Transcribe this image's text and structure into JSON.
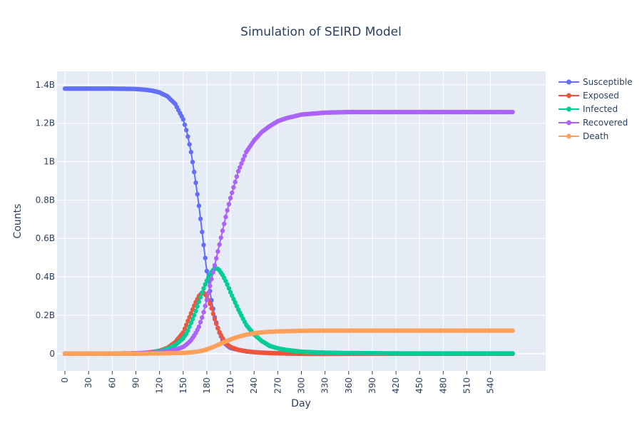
{
  "chart_data": {
    "type": "line",
    "title": "Simulation of SEIRD Model",
    "xlabel": "Day",
    "ylabel": "Counts",
    "xlim": [
      -10,
      610
    ],
    "ylim": [
      -0.09,
      1.47
    ],
    "x_ticks": [
      0,
      30,
      60,
      90,
      120,
      150,
      180,
      210,
      240,
      270,
      300,
      330,
      360,
      390,
      420,
      450,
      480,
      510,
      540
    ],
    "y_ticks": [
      {
        "value": 0,
        "label": "0"
      },
      {
        "value": 0.2,
        "label": "0.2B"
      },
      {
        "value": 0.4,
        "label": "0.4B"
      },
      {
        "value": 0.6,
        "label": "0.6B"
      },
      {
        "value": 0.8,
        "label": "0.8B"
      },
      {
        "value": 1.0,
        "label": "1B"
      },
      {
        "value": 1.2,
        "label": "1.2B"
      },
      {
        "value": 1.4,
        "label": "1.4B"
      }
    ],
    "grid": true,
    "legend_position": "top-right",
    "x": [
      0,
      30,
      60,
      90,
      100,
      110,
      120,
      130,
      140,
      150,
      155,
      160,
      165,
      170,
      175,
      180,
      185,
      190,
      195,
      200,
      205,
      210,
      220,
      230,
      240,
      250,
      260,
      270,
      280,
      300,
      330,
      360,
      400,
      450,
      500,
      569
    ],
    "series": [
      {
        "name": "Susceptible",
        "color": "#636efa",
        "values": [
          1.38,
          1.38,
          1.38,
          1.378,
          1.375,
          1.37,
          1.36,
          1.34,
          1.3,
          1.22,
          1.15,
          1.05,
          0.92,
          0.77,
          0.6,
          0.43,
          0.3,
          0.19,
          0.12,
          0.07,
          0.045,
          0.03,
          0.02,
          0.012,
          0.008,
          0.005,
          0.003,
          0.002,
          0.001,
          0,
          0,
          0,
          0,
          0,
          0,
          0
        ]
      },
      {
        "name": "Exposed",
        "color": "#ef553b",
        "values": [
          0,
          0,
          0,
          0.002,
          0.004,
          0.008,
          0.015,
          0.03,
          0.06,
          0.11,
          0.16,
          0.21,
          0.26,
          0.3,
          0.32,
          0.3,
          0.25,
          0.18,
          0.12,
          0.08,
          0.05,
          0.035,
          0.02,
          0.012,
          0.008,
          0.005,
          0.003,
          0.002,
          0.001,
          0,
          0,
          0,
          0,
          0,
          0,
          0
        ]
      },
      {
        "name": "Infected",
        "color": "#00cc96",
        "values": [
          0,
          0,
          0,
          0.001,
          0.003,
          0.006,
          0.012,
          0.025,
          0.045,
          0.08,
          0.11,
          0.16,
          0.21,
          0.27,
          0.33,
          0.38,
          0.42,
          0.445,
          0.44,
          0.41,
          0.37,
          0.32,
          0.23,
          0.15,
          0.1,
          0.065,
          0.04,
          0.028,
          0.02,
          0.01,
          0.005,
          0.003,
          0.002,
          0.001,
          0.001,
          0.001
        ]
      },
      {
        "name": "Recovered",
        "color": "#ab63fa",
        "values": [
          0,
          0,
          0,
          0.001,
          0.002,
          0.004,
          0.008,
          0.012,
          0.02,
          0.035,
          0.05,
          0.07,
          0.1,
          0.14,
          0.2,
          0.28,
          0.37,
          0.46,
          0.55,
          0.64,
          0.73,
          0.81,
          0.95,
          1.05,
          1.11,
          1.155,
          1.185,
          1.21,
          1.225,
          1.245,
          1.255,
          1.258,
          1.258,
          1.258,
          1.258,
          1.258
        ]
      },
      {
        "name": "Death",
        "color": "#ffa15a",
        "values": [
          0,
          0,
          0,
          0,
          0,
          0.001,
          0.001,
          0.002,
          0.003,
          0.004,
          0.005,
          0.007,
          0.009,
          0.012,
          0.016,
          0.022,
          0.03,
          0.038,
          0.047,
          0.056,
          0.065,
          0.074,
          0.088,
          0.099,
          0.106,
          0.111,
          0.114,
          0.116,
          0.117,
          0.119,
          0.12,
          0.12,
          0.12,
          0.12,
          0.12,
          0.12
        ]
      }
    ]
  }
}
